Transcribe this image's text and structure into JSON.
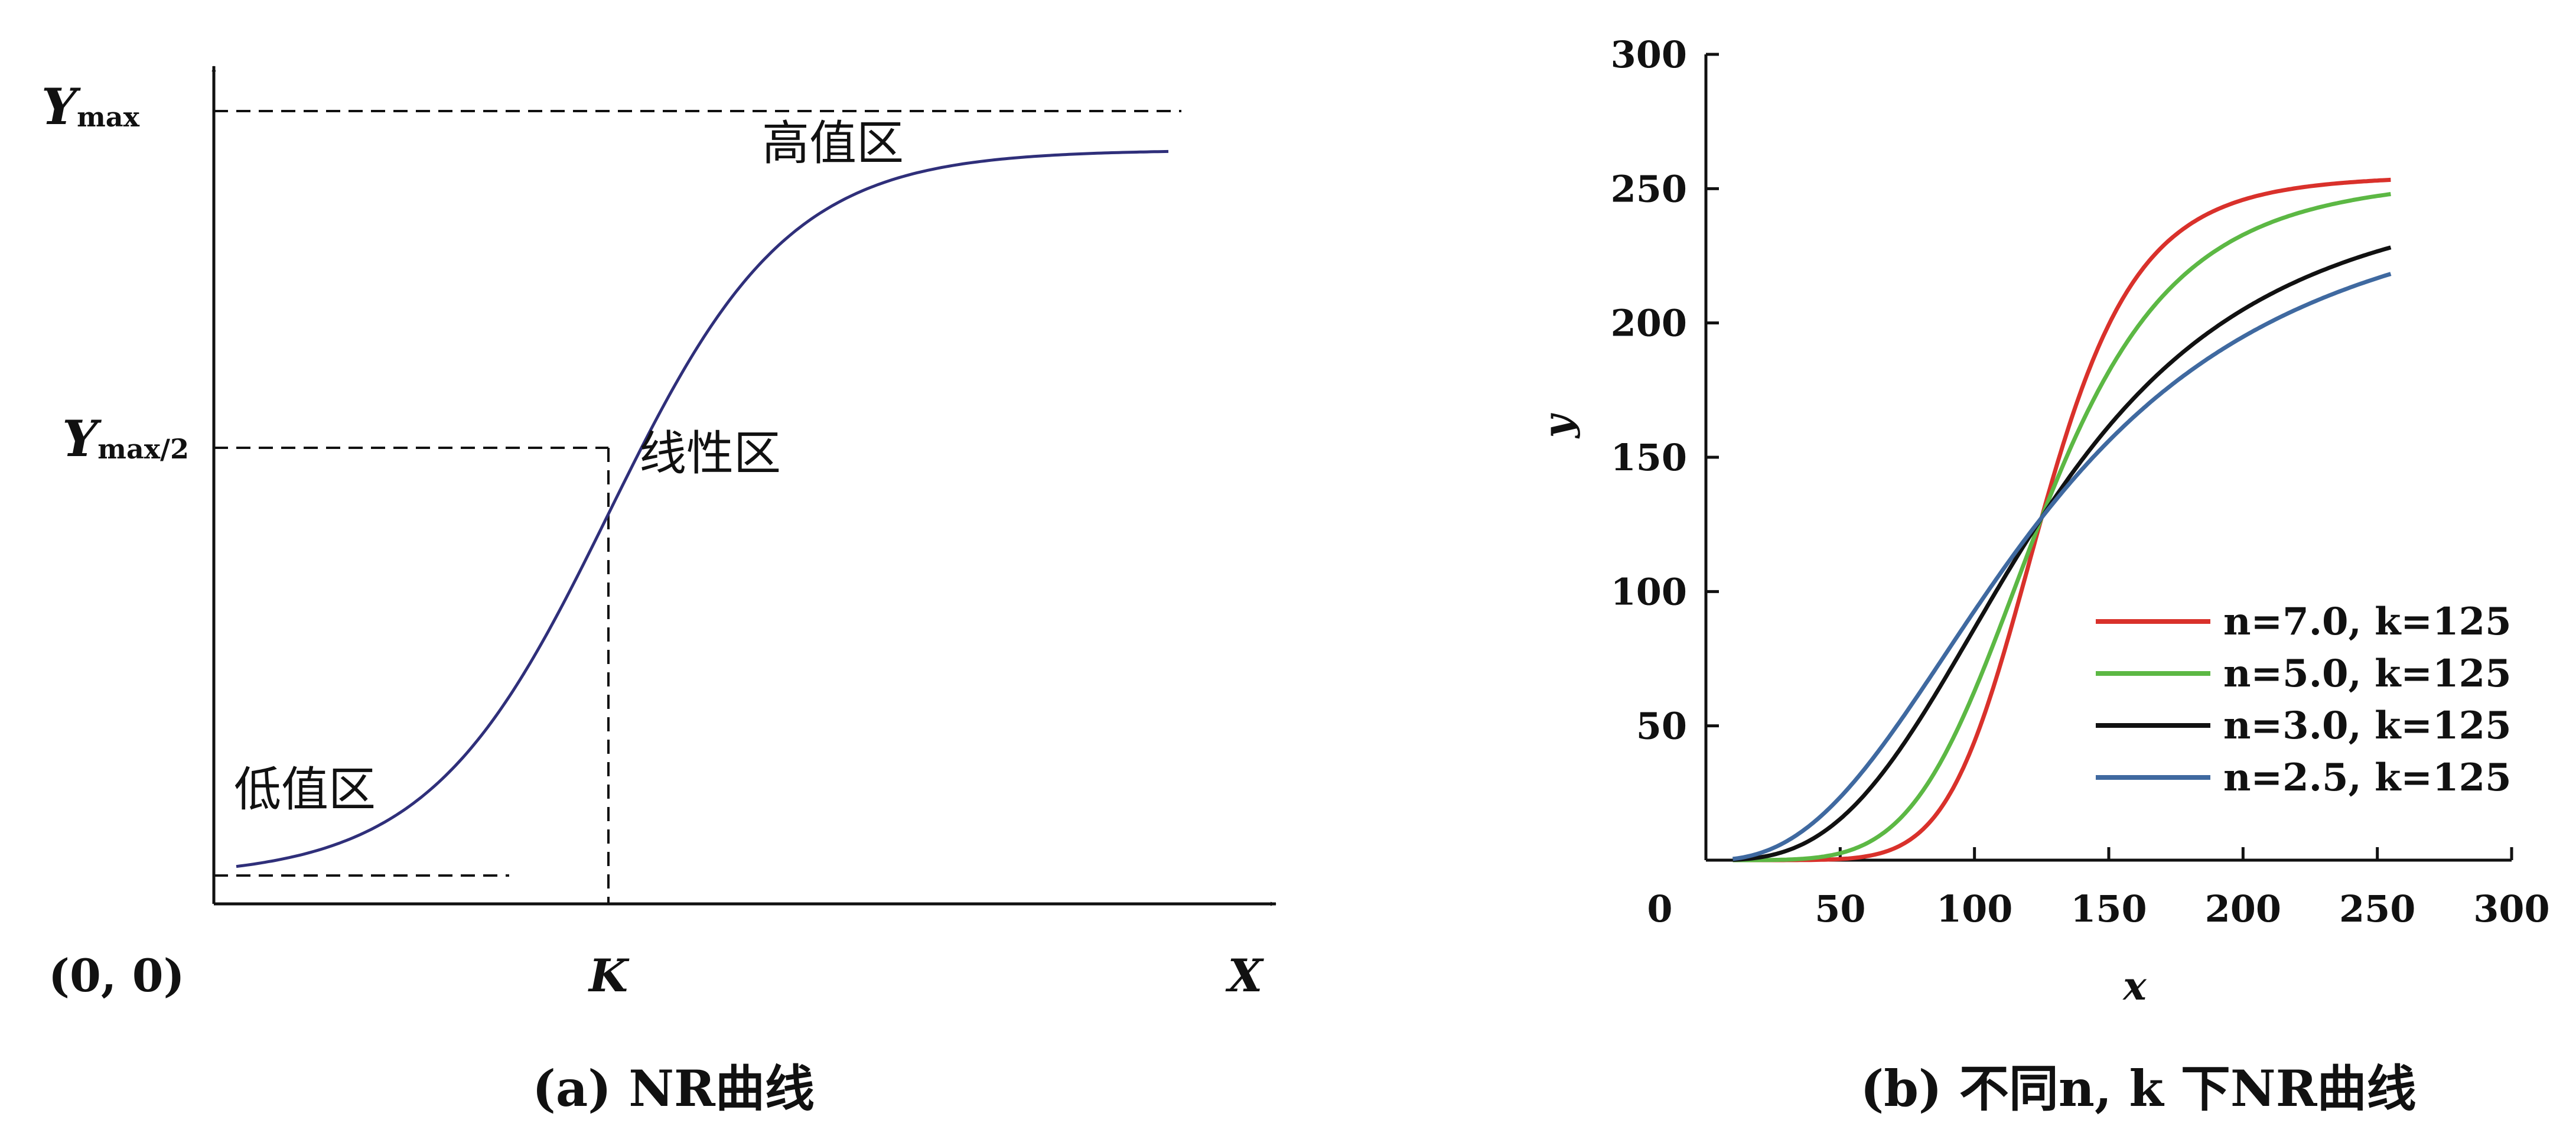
{
  "chart_data": [
    {
      "type": "line",
      "panel": "a",
      "caption": "(a) NR曲线",
      "curve_shape": "sigmoid",
      "x_axis_label": "X",
      "origin_label": "(0, 0)",
      "k_label": "K",
      "y_max_label_main": "Y",
      "y_max_label_sub": "max",
      "y_half_label_main": "Y",
      "y_half_label_sub": "max/2",
      "zones": {
        "high": "高值区",
        "linear": "线性区",
        "low": "低值区"
      },
      "colors": {
        "curve": "#2f2f7a",
        "axis": "#111111"
      }
    },
    {
      "type": "line",
      "panel": "b",
      "caption": "(b) 不同n, k 下NR曲线",
      "xlabel": "x",
      "ylabel": "y",
      "origin_label": "0",
      "xlim": [
        0,
        300
      ],
      "ylim": [
        0,
        300
      ],
      "x_ticks": [
        50,
        100,
        150,
        200,
        250,
        300
      ],
      "y_ticks": [
        50,
        100,
        150,
        200,
        250,
        300
      ],
      "x_range": [
        10,
        255
      ],
      "legend_position": "bottom-right",
      "series": [
        {
          "name": "n=7.0, k=125",
          "n": 7.0,
          "k": 125,
          "color": "#d9312b",
          "x": [
            10,
            50,
            75,
            100,
            125,
            150,
            175,
            200,
            225,
            255
          ],
          "y": [
            0.0,
            0.2,
            7.4,
            47.6,
            127.5,
            202.2,
            236.2,
            247.7,
            252.0,
            253.9
          ]
        },
        {
          "name": "n=5.0, k=125",
          "n": 5.0,
          "k": 125,
          "color": "#5cb844",
          "x": [
            10,
            50,
            75,
            100,
            125,
            150,
            175,
            200,
            225,
            255
          ],
          "y": [
            0.0,
            2.6,
            18.0,
            63.8,
            127.5,
            181.5,
            215.6,
            233.7,
            243.1,
            248.7
          ]
        },
        {
          "name": "n=3.0, k=125",
          "n": 3.0,
          "k": 125,
          "color": "#111111",
          "x": [
            10,
            50,
            75,
            100,
            125,
            150,
            175,
            200,
            225,
            255
          ],
          "y": [
            0.1,
            15.2,
            45.3,
            86.1,
            127.5,
            161.6,
            186.9,
            205.0,
            217.8,
            228.1
          ]
        },
        {
          "name": "n=2.5, k=125",
          "n": 2.5,
          "k": 125,
          "color": "#3f69a0",
          "x": [
            10,
            50,
            75,
            100,
            125,
            150,
            175,
            200,
            225,
            255
          ],
          "y": [
            0.3,
            23.6,
            55.5,
            93.7,
            127.5,
            156.0,
            178.0,
            194.9,
            207.3,
            218.9
          ]
        }
      ]
    }
  ]
}
